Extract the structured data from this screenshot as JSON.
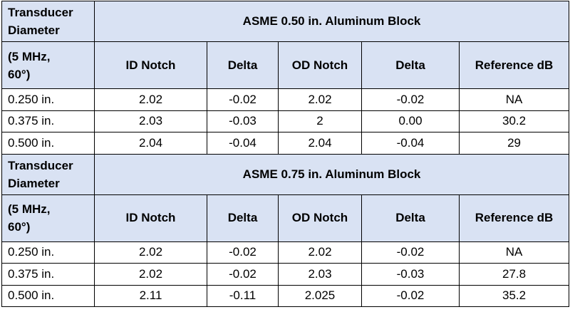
{
  "sections": [
    {
      "row_label_line1": "Transducer",
      "row_label_line2": "Diameter",
      "title": "ASME 0.50 in. Aluminum Block",
      "sub_label_line1": "(5 MHz,",
      "sub_label_line2": "60°)",
      "columns": [
        "ID Notch",
        "Delta",
        "OD Notch",
        "Delta",
        "Reference dB"
      ],
      "rows": [
        {
          "diameter": "0.250 in.",
          "cells": [
            "2.02",
            "-0.02",
            "2.02",
            "-0.02",
            "NA"
          ]
        },
        {
          "diameter": "0.375 in.",
          "cells": [
            "2.03",
            "-0.03",
            "2",
            "0.00",
            "30.2"
          ]
        },
        {
          "diameter": "0.500 in.",
          "cells": [
            "2.04",
            "-0.04",
            "2.04",
            "-0.04",
            "29"
          ]
        }
      ]
    },
    {
      "row_label_line1": "Transducer",
      "row_label_line2": "Diameter",
      "title": "ASME 0.75 in. Aluminum Block",
      "sub_label_line1": "(5 MHz,",
      "sub_label_line2": "60°)",
      "columns": [
        "ID Notch",
        "Delta",
        "OD Notch",
        "Delta",
        "Reference dB"
      ],
      "rows": [
        {
          "diameter": "0.250 in.",
          "cells": [
            "2.02",
            "-0.02",
            "2.02",
            "-0.02",
            "NA"
          ]
        },
        {
          "diameter": "0.375 in.",
          "cells": [
            "2.02",
            "-0.02",
            "2.03",
            "-0.03",
            "27.8"
          ]
        },
        {
          "diameter": "0.500 in.",
          "cells": [
            "2.11",
            "-0.11",
            "2.025",
            "-0.02",
            "35.2"
          ]
        }
      ]
    }
  ],
  "colors": {
    "header_fill": "#d9e2f3",
    "border": "#000000",
    "text": "#000000"
  }
}
